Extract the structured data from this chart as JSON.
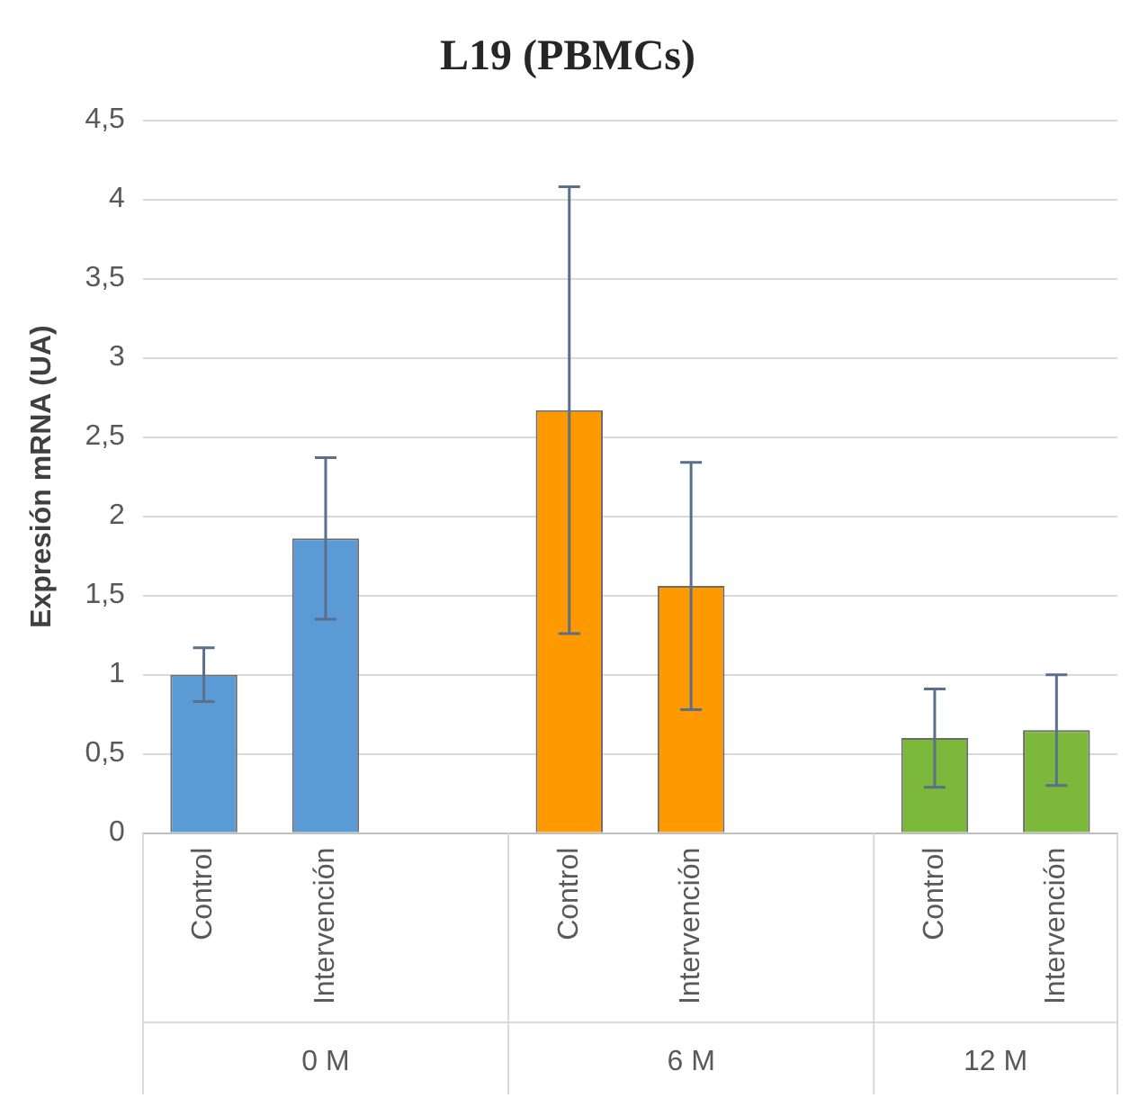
{
  "chart_data": {
    "type": "bar",
    "title": "L19 (PBMCs)",
    "ylabel": "Expresión mRNA (UA)",
    "categories": [
      "Control",
      "Intervención",
      null,
      "Control",
      "Intervención",
      null,
      "Control",
      "Intervención"
    ],
    "values": [
      1.0,
      1.86,
      null,
      2.67,
      1.56,
      null,
      0.6,
      0.65
    ],
    "errors": [
      0.17,
      0.51,
      null,
      1.41,
      0.78,
      null,
      0.31,
      0.35
    ],
    "colors": [
      "#5b9bd5",
      "#5b9bd5",
      "#5b9bd5",
      "#ff9900",
      "#ff9900",
      "#ff9900",
      "#7cb93a",
      "#7cb93a"
    ],
    "annotations": [
      "0 M",
      "6 M",
      "12 M"
    ],
    "ylim": [
      0,
      4.5
    ],
    "yticks": [
      0,
      {
        "value": 0.5,
        "label": "0,5"
      },
      1,
      {
        "value": 1.5,
        "label": "1,5"
      },
      2,
      {
        "value": 2.5,
        "label": "2,5"
      },
      3,
      {
        "value": 3.5,
        "label": "3,5"
      },
      4,
      {
        "value": 4.5,
        "label": "4,5"
      }
    ],
    "grid": "y",
    "legend": false
  }
}
